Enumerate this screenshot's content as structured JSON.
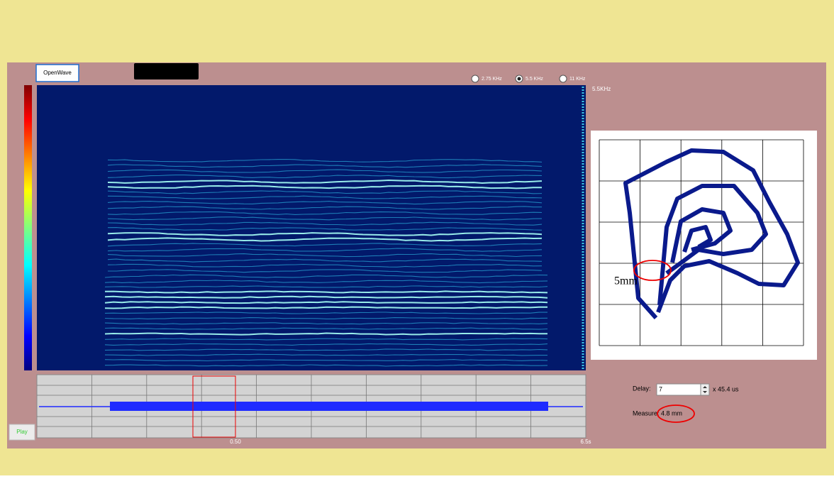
{
  "toolbar": {
    "open_button": "OpenWave",
    "frequency_options": [
      {
        "label": "2.75 KHz",
        "selected": false
      },
      {
        "label": "5.5 KHz",
        "selected": true
      },
      {
        "label": "11 KHz",
        "selected": false
      }
    ]
  },
  "spectrogram": {
    "max_frequency_label": "5.5KHz"
  },
  "phase_plot": {
    "annotation": "5mm"
  },
  "waveform": {
    "play_button": "Play",
    "marker_label": "0.50",
    "end_label": "6.5s"
  },
  "controls": {
    "delay_label": "Delay:",
    "delay_value": "7",
    "delay_unit": "x 45.4 us",
    "measure_label": "Measure:",
    "measure_value": "4.8 mm"
  }
}
